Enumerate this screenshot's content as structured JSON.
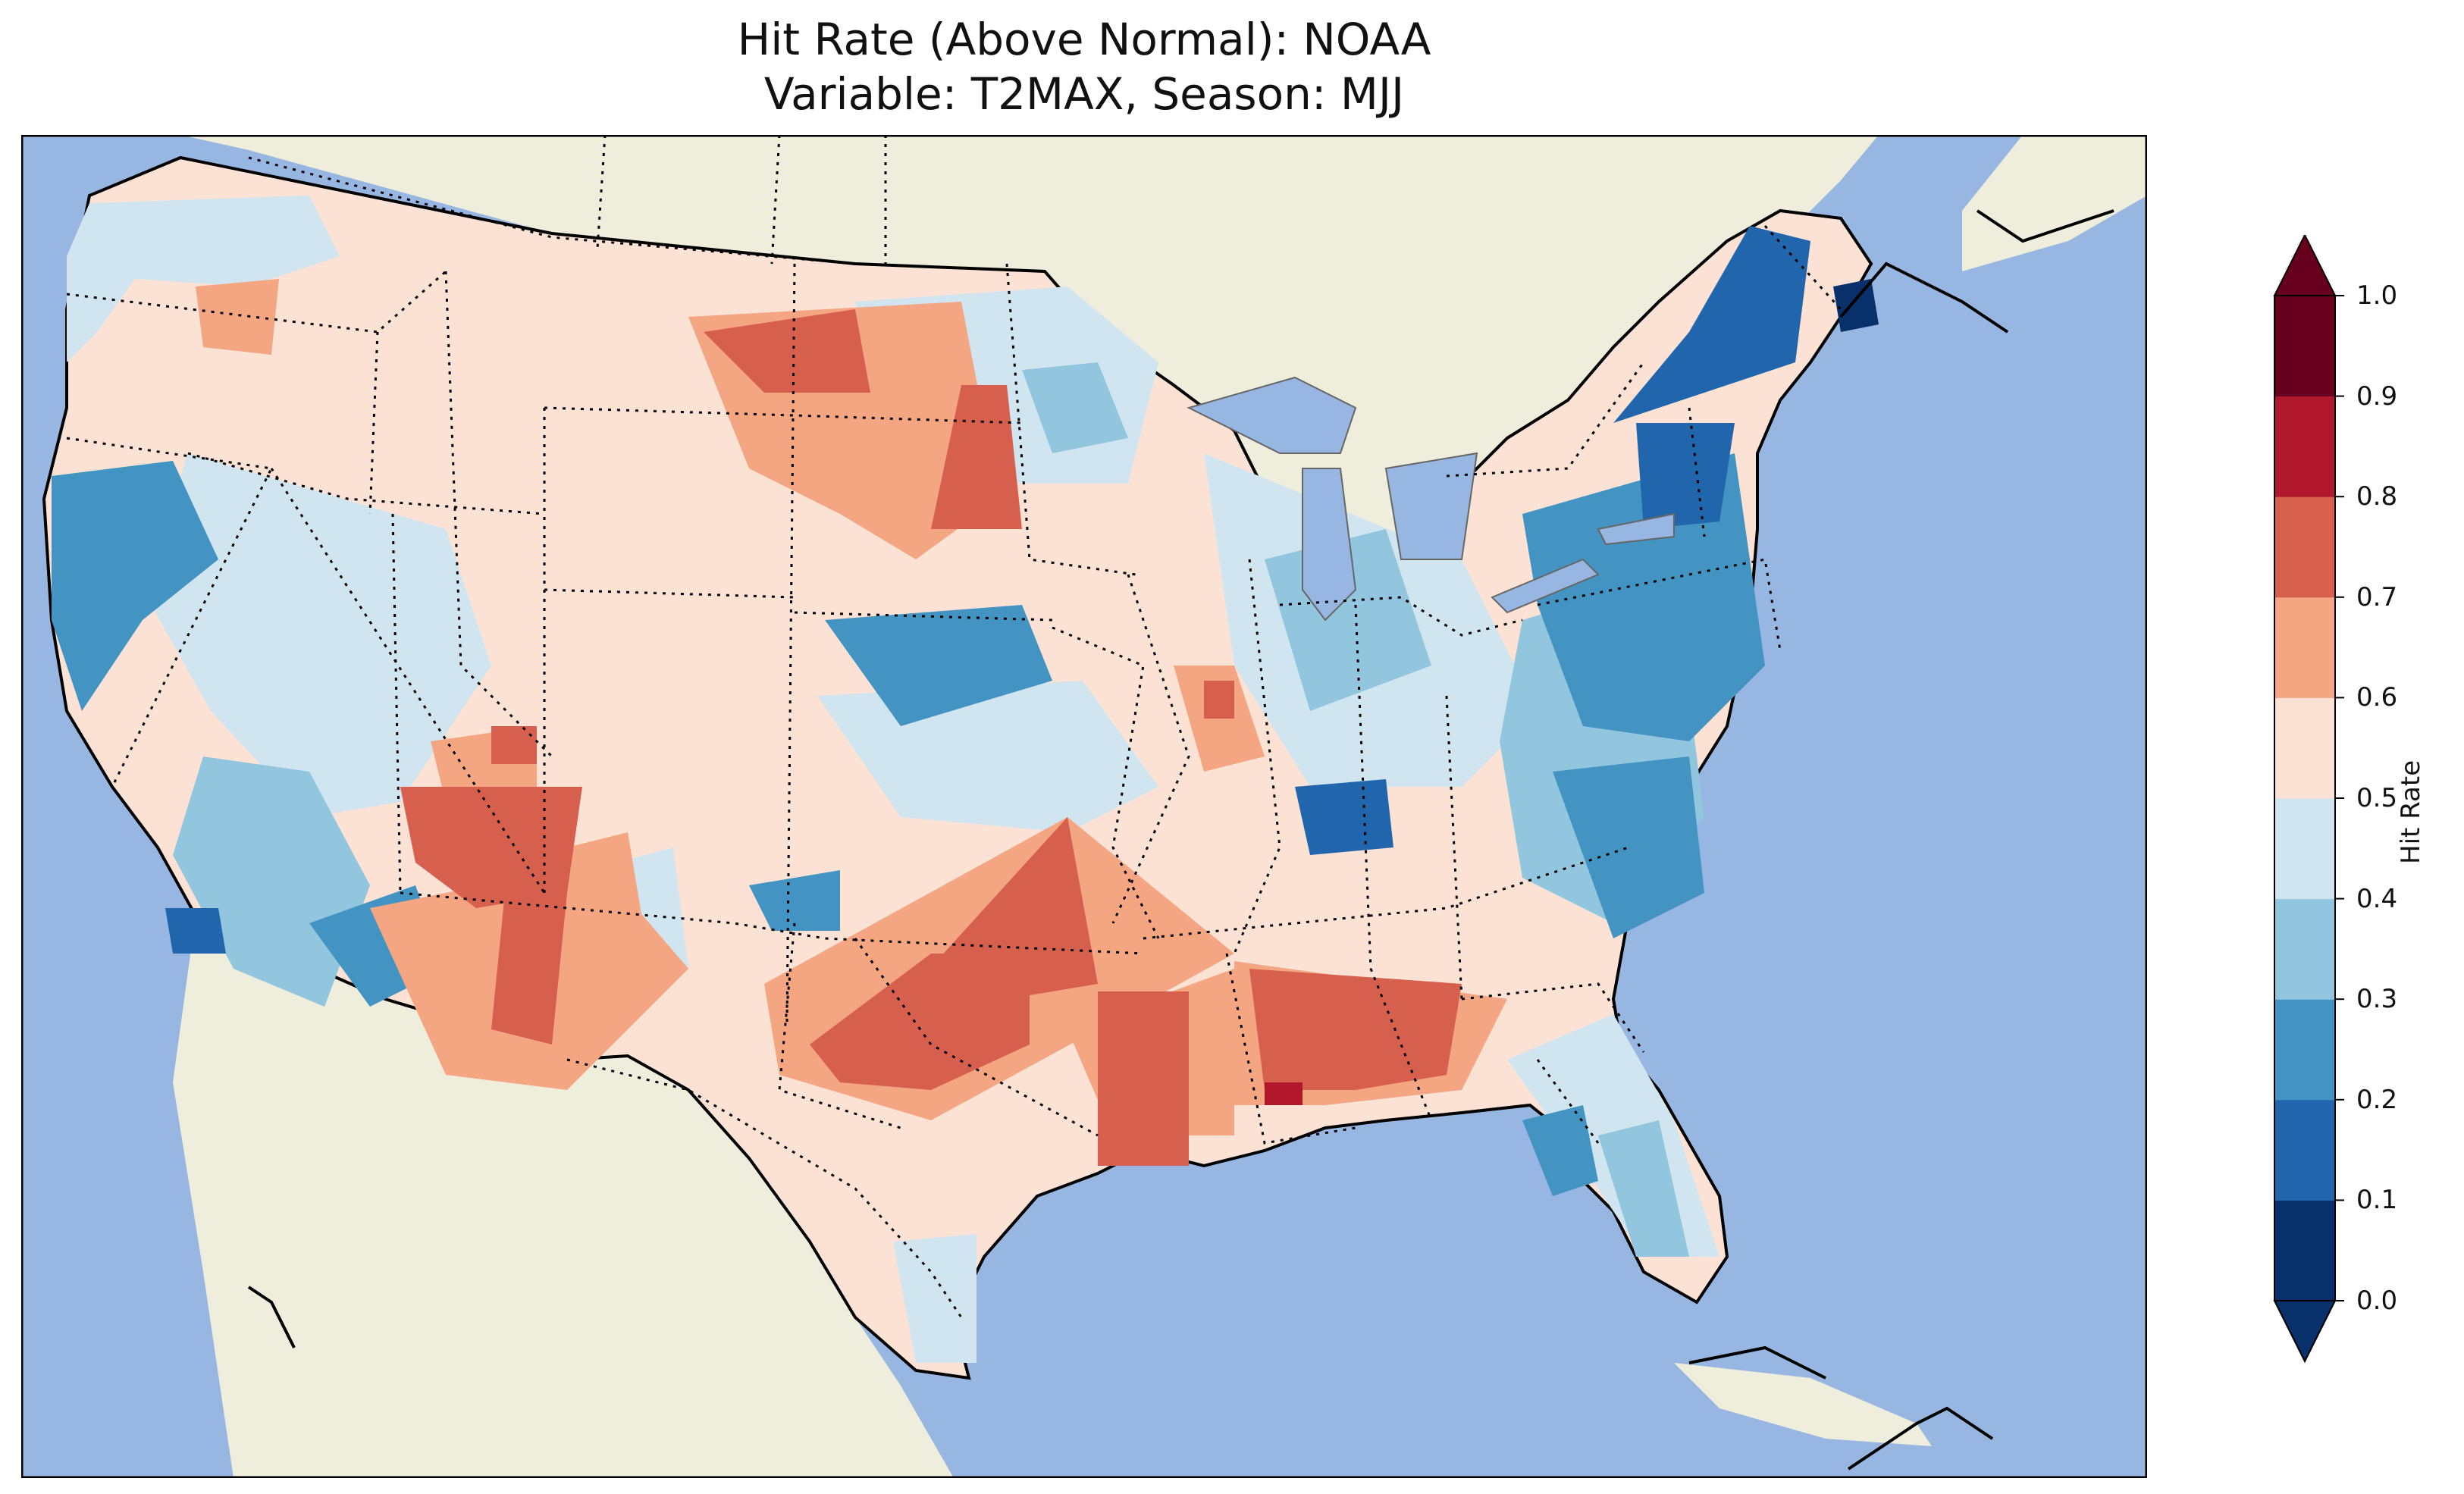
{
  "title_line1": "Hit Rate (Above Normal): NOAA",
  "title_line2": "Variable: T2MAX, Season: MJJ",
  "colorbar": {
    "label": "Hit Rate",
    "ticks": [
      "0.0",
      "0.1",
      "0.2",
      "0.3",
      "0.4",
      "0.5",
      "0.6",
      "0.7",
      "0.8",
      "0.9",
      "1.0"
    ],
    "bins": [
      "#08306b",
      "#2166ac",
      "#4393c3",
      "#92c5de",
      "#d1e5f0",
      "#fbe2d5",
      "#f4a582",
      "#d6604d",
      "#b2182b",
      "#67001f"
    ],
    "under_color": "#08306b",
    "over_color": "#67001f",
    "range": [
      0,
      1
    ]
  },
  "colors": {
    "ocean": "#97b6e1",
    "land": "#efeddb",
    "lakes": "#97b6e1"
  }
}
